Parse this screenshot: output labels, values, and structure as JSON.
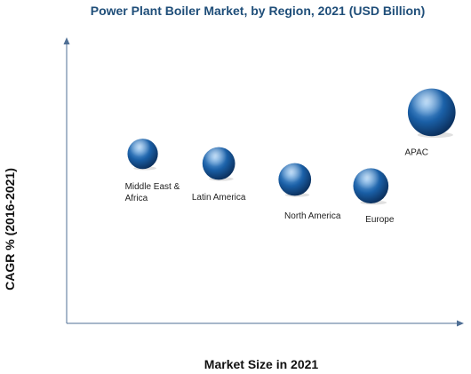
{
  "chart_data": {
    "type": "scatter",
    "title": "Power Plant Boiler Market, by Region, 2021 (USD Billion)",
    "xlabel": "Market Size in 2021",
    "ylabel": "CAGR % (2016-2021)",
    "grid": false,
    "series": [
      {
        "points": [
          {
            "label": "Middle East & Africa",
            "x": 1.0,
            "y": 5.3,
            "size": 1.3
          },
          {
            "label": "Latin America",
            "x": 2.0,
            "y": 5.0,
            "size": 1.5
          },
          {
            "label": "North America",
            "x": 3.0,
            "y": 4.5,
            "size": 1.5
          },
          {
            "label": "Europe",
            "x": 4.0,
            "y": 4.3,
            "size": 1.75
          },
          {
            "label": "APAC",
            "x": 4.8,
            "y": 6.6,
            "size": 3.2
          }
        ]
      }
    ],
    "colors": {
      "bubble": "#1a5fa6",
      "bubble_highlight": "#7fb9ee",
      "bubble_dark": "#0b2f5c",
      "title": "#1f4e79",
      "axis": "#4f6f95"
    }
  }
}
